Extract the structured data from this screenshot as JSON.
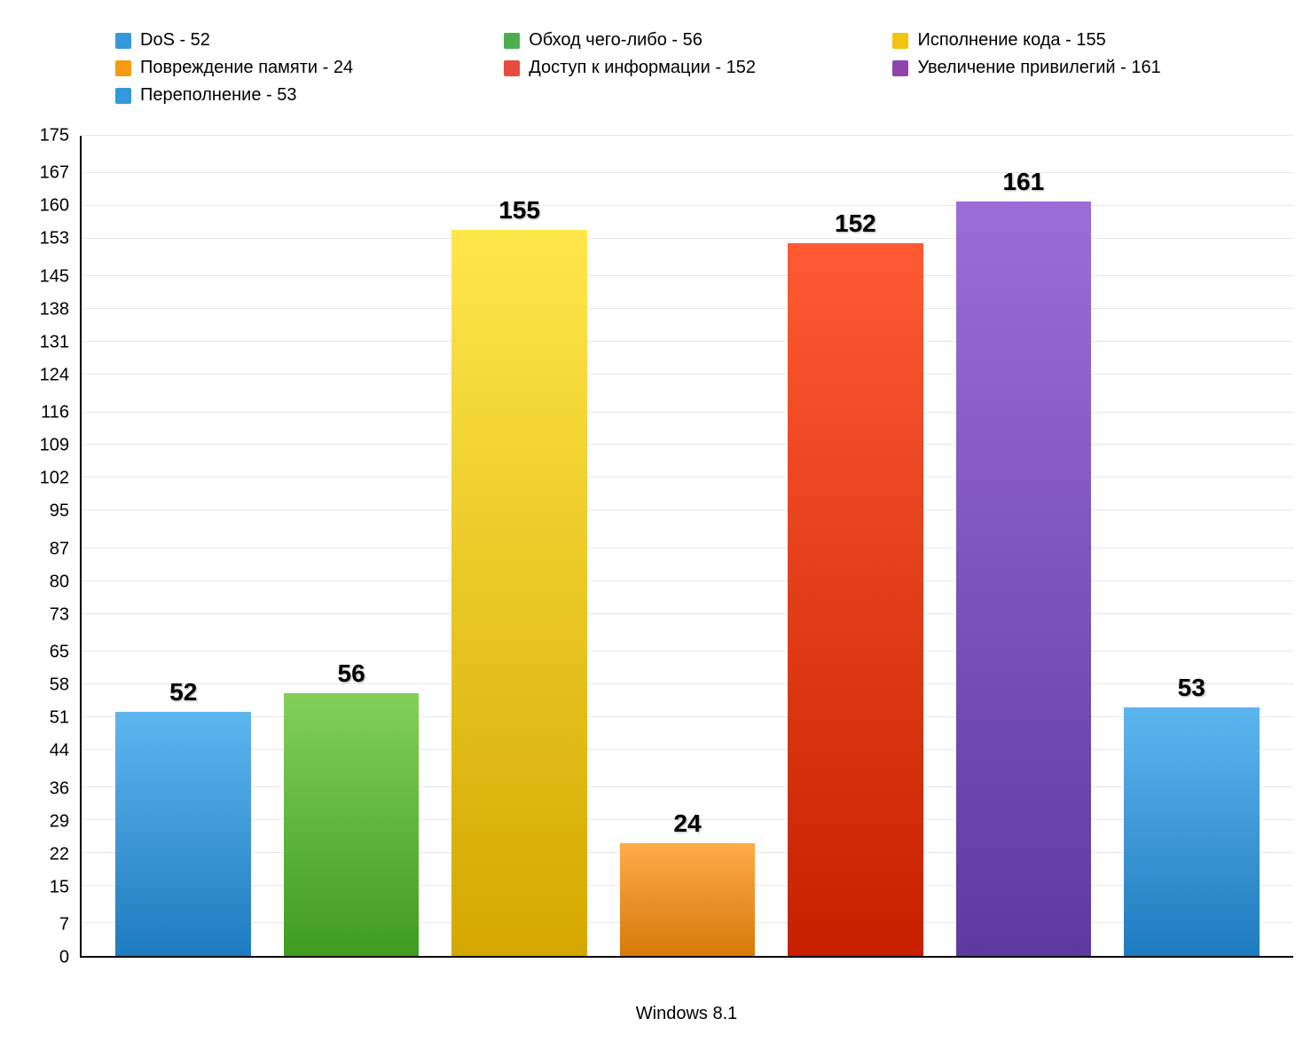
{
  "chart": {
    "type": "bar",
    "x_label": "Windows 8.1",
    "background_color": "#ffffff",
    "grid_color": "#e8e8e8",
    "axis_color": "#000000",
    "y_axis": {
      "min": 0,
      "max": 175,
      "ticks": [
        0,
        7,
        15,
        22,
        29,
        36,
        44,
        51,
        58,
        65,
        73,
        80,
        87,
        95,
        102,
        109,
        116,
        124,
        131,
        138,
        145,
        153,
        160,
        167,
        175
      ],
      "tick_fontsize": 20,
      "tick_color": "#000000"
    },
    "value_label_fontsize": 28,
    "value_label_weight": "bold",
    "x_label_fontsize": 20,
    "bar_width_ratio": 0.88,
    "series": [
      {
        "name": "DoS",
        "value": 52,
        "legend_label": "DoS - 52",
        "color_top": "#5eb6ef",
        "color_bottom": "#1f7bc0",
        "swatch": "#3498db"
      },
      {
        "name": "Обход чего-либо",
        "value": 56,
        "legend_label": "Обход чего-либо - 56",
        "color_top": "#82d05a",
        "color_bottom": "#3f9c1f",
        "swatch": "#4caf50"
      },
      {
        "name": "Исполнение кода",
        "value": 155,
        "legend_label": "Исполнение кода - 155",
        "color_top": "#ffe74a",
        "color_bottom": "#d4a800",
        "swatch": "#f1c40f"
      },
      {
        "name": "Повреждение памяти",
        "value": 24,
        "legend_label": "Повреждение памяти - 24",
        "color_top": "#ffab4a",
        "color_bottom": "#d67a0a",
        "swatch": "#f39c12"
      },
      {
        "name": "Доступ к информации",
        "value": 152,
        "legend_label": "Доступ к информации - 152",
        "color_top": "#ff5a33",
        "color_bottom": "#c62000",
        "swatch": "#e74c3c"
      },
      {
        "name": "Увеличение привилегий",
        "value": 161,
        "legend_label": "Увеличение привилегий - 161",
        "color_top": "#9b6dd7",
        "color_bottom": "#5e3aa0",
        "swatch": "#8e44ad"
      },
      {
        "name": "Переполнение",
        "value": 53,
        "legend_label": "Переполнение - 53",
        "color_top": "#5eb6ef",
        "color_bottom": "#1f7bc0",
        "swatch": "#3498db"
      }
    ],
    "legend": {
      "fontsize": 20,
      "swatch_size": 18,
      "text_color": "#000000",
      "columns": 3
    }
  }
}
